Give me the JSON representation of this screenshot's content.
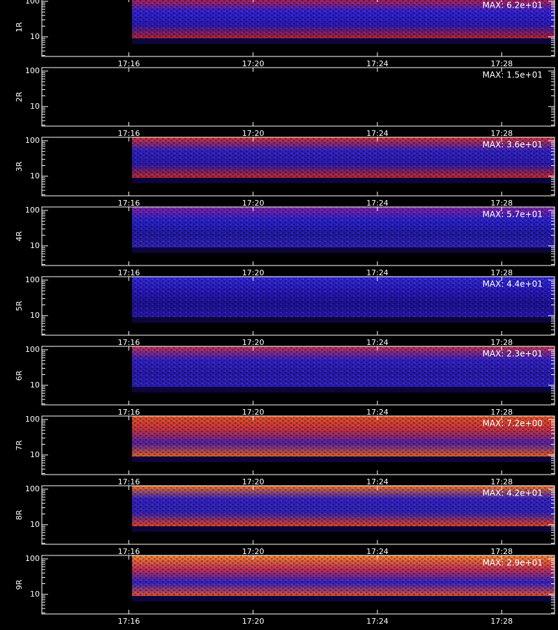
{
  "chart_data": [
    {
      "type": "spectrogram",
      "ylabel": "1R",
      "annotation": "MAX: 6.2e+01",
      "colors": [
        "#c02040",
        "#3020d0",
        "#2818b0",
        "#b02030"
      ]
    },
    {
      "type": "spectrogram",
      "ylabel": "2R",
      "annotation": "MAX: 1.5e+01",
      "colors": []
    },
    {
      "type": "spectrogram",
      "ylabel": "3R",
      "annotation": "MAX: 3.6e+01",
      "colors": [
        "#d03030",
        "#3020c0",
        "#2a18a8",
        "#c02828"
      ]
    },
    {
      "type": "spectrogram",
      "ylabel": "4R",
      "annotation": "MAX: 5.7e+01",
      "colors": [
        "#8020a0",
        "#2820c8",
        "#2018a0",
        "#3020b0"
      ]
    },
    {
      "type": "spectrogram",
      "ylabel": "5R",
      "annotation": "MAX: 4.4e+01",
      "colors": [
        "#3028d8",
        "#2818b8",
        "#1c1090",
        "#2818a8"
      ]
    },
    {
      "type": "spectrogram",
      "ylabel": "6R",
      "annotation": "MAX: 2.3e+01",
      "colors": [
        "#c03050",
        "#3020c0",
        "#2818a8",
        "#2a20b8"
      ]
    },
    {
      "type": "spectrogram",
      "ylabel": "7R",
      "annotation": "MAX: 7.2e+00",
      "colors": [
        "#e05020",
        "#c03040",
        "#5020a0",
        "#e06020"
      ]
    },
    {
      "type": "spectrogram",
      "ylabel": "8R",
      "annotation": "MAX: 4.2e+01",
      "colors": [
        "#f07020",
        "#3020c0",
        "#3020b0",
        "#e04020"
      ]
    },
    {
      "type": "spectrogram",
      "ylabel": "9R",
      "annotation": "MAX: 2.9e+01",
      "colors": [
        "#f08030",
        "#c03050",
        "#3020c0",
        "#e05030"
      ]
    }
  ],
  "axes": {
    "xlim": [
      1033.2,
      1049.7
    ],
    "xticks": [
      {
        "value": 1036,
        "label": "17:16"
      },
      {
        "value": 1040,
        "label": "17:20"
      },
      {
        "value": 1044,
        "label": "17:24"
      },
      {
        "value": 1048,
        "label": "17:28"
      }
    ],
    "xstart": 1036.1,
    "ylim": [
      2.8,
      125
    ],
    "log_y": true,
    "yticks": [
      10,
      100
    ],
    "yminorticks": [
      3,
      4,
      5,
      6,
      7,
      8,
      9,
      20,
      30,
      40,
      50,
      60,
      70,
      80,
      90
    ],
    "band_floor": 9
  }
}
